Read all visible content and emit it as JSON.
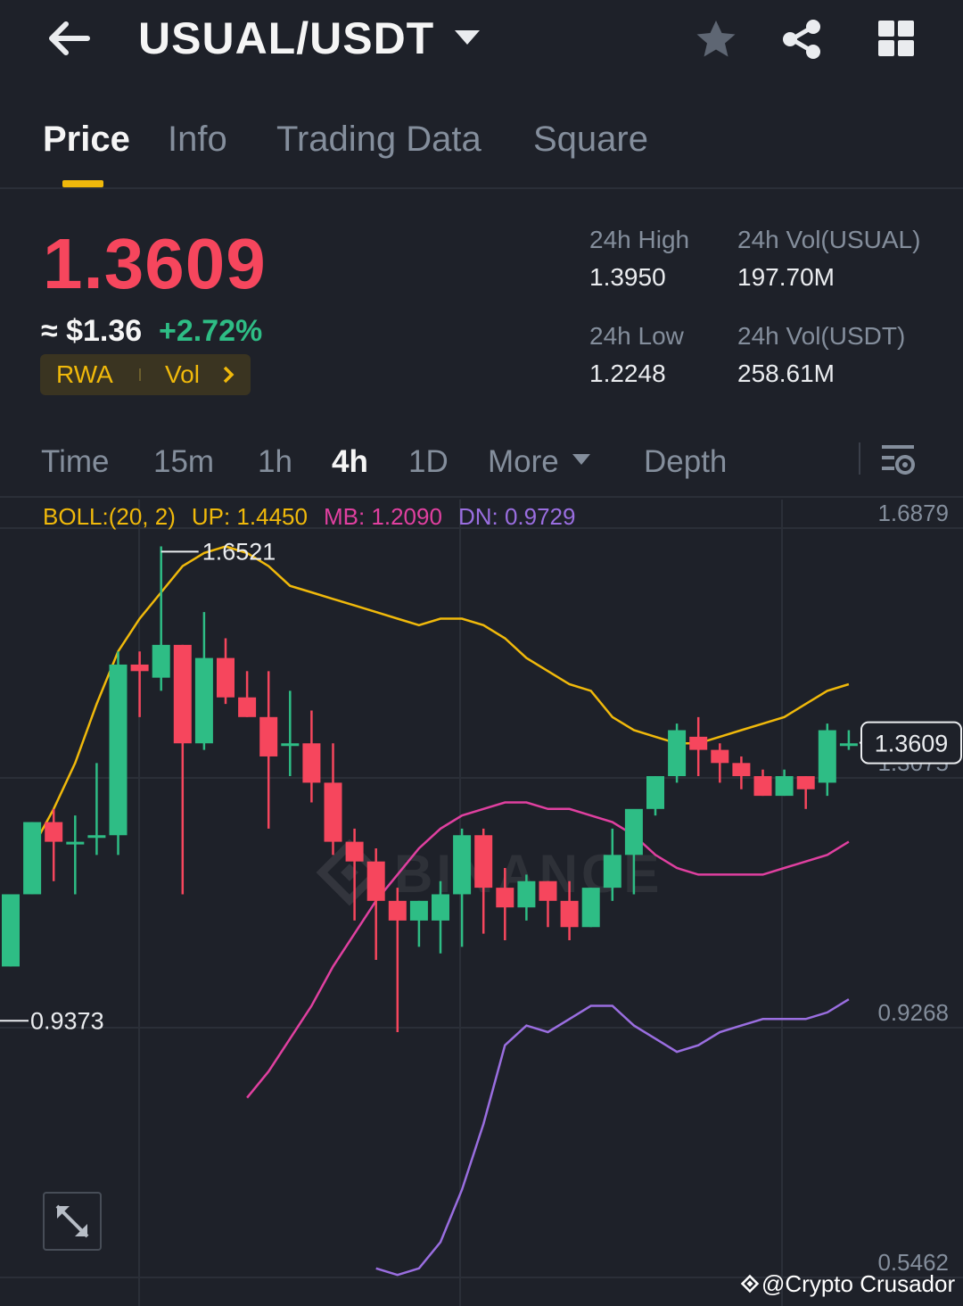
{
  "header": {
    "pair": "USUAL/USDT",
    "icons": [
      "back-arrow-icon",
      "caret-down-icon",
      "star-icon",
      "share-icon",
      "grid-icon"
    ]
  },
  "tabs": [
    {
      "label": "Price",
      "active": true
    },
    {
      "label": "Info"
    },
    {
      "label": "Trading Data"
    },
    {
      "label": "Square"
    }
  ],
  "ticker": {
    "last_price": "1.3609",
    "fiat_price": "≈ $1.36",
    "change": "+2.72%",
    "tags": [
      "RWA",
      "Vol"
    ],
    "price_color": "#f6465d",
    "change_color": "#2ebd85"
  },
  "stats": {
    "high_label": "24h High",
    "high": "1.3950",
    "vol_base_label": "24h Vol(USUAL)",
    "vol_base": "197.70M",
    "low_label": "24h Low",
    "low": "1.2248",
    "vol_quote_label": "24h Vol(USDT)",
    "vol_quote": "258.61M"
  },
  "intervals": {
    "items": [
      "Time",
      "15m",
      "1h",
      "4h",
      "1D",
      "More",
      "Depth"
    ],
    "active": "4h"
  },
  "indicator": {
    "name": "BOLL:(20, 2)",
    "up": "UP: 1.4450",
    "mb": "MB: 1.2090",
    "dn": "DN: 0.9729",
    "colors": {
      "up": "#f0b90b",
      "mb": "#e040a0",
      "dn": "#9a6ee0",
      "name": "#f0b90b"
    }
  },
  "chart_data": {
    "type": "candlestick",
    "y_ticks": [
      "1.6879",
      "1.3075",
      "0.9268",
      "0.5462"
    ],
    "ylim": [
      0.5462,
      1.6879
    ],
    "current_price_label": "1.3609",
    "max_label": "1.6521",
    "min_label": "0.9373",
    "colors": {
      "up": "#2ebd85",
      "down": "#f6465d"
    },
    "candles": [
      {
        "o": 1.02,
        "h": 1.13,
        "l": 1.02,
        "c": 1.13
      },
      {
        "o": 1.13,
        "h": 1.24,
        "l": 1.13,
        "c": 1.24
      },
      {
        "o": 1.24,
        "h": 1.26,
        "l": 1.15,
        "c": 1.21
      },
      {
        "o": 1.21,
        "h": 1.25,
        "l": 1.13,
        "c": 1.21
      },
      {
        "o": 1.22,
        "h": 1.33,
        "l": 1.19,
        "c": 1.22
      },
      {
        "o": 1.22,
        "h": 1.5,
        "l": 1.19,
        "c": 1.48
      },
      {
        "o": 1.48,
        "h": 1.5,
        "l": 1.4,
        "c": 1.47
      },
      {
        "o": 1.46,
        "h": 1.66,
        "l": 1.44,
        "c": 1.51
      },
      {
        "o": 1.51,
        "h": 1.51,
        "l": 1.13,
        "c": 1.36
      },
      {
        "o": 1.36,
        "h": 1.56,
        "l": 1.35,
        "c": 1.49
      },
      {
        "o": 1.49,
        "h": 1.52,
        "l": 1.42,
        "c": 1.43
      },
      {
        "o": 1.43,
        "h": 1.47,
        "l": 1.4,
        "c": 1.4
      },
      {
        "o": 1.4,
        "h": 1.47,
        "l": 1.23,
        "c": 1.34
      },
      {
        "o": 1.36,
        "h": 1.44,
        "l": 1.31,
        "c": 1.36
      },
      {
        "o": 1.36,
        "h": 1.41,
        "l": 1.27,
        "c": 1.3
      },
      {
        "o": 1.3,
        "h": 1.36,
        "l": 1.19,
        "c": 1.21
      },
      {
        "o": 1.21,
        "h": 1.23,
        "l": 1.09,
        "c": 1.18
      },
      {
        "o": 1.18,
        "h": 1.2,
        "l": 1.03,
        "c": 1.12
      },
      {
        "o": 1.12,
        "h": 1.14,
        "l": 0.92,
        "c": 1.09
      },
      {
        "o": 1.09,
        "h": 1.12,
        "l": 1.05,
        "c": 1.12
      },
      {
        "o": 1.09,
        "h": 1.15,
        "l": 1.04,
        "c": 1.13
      },
      {
        "o": 1.13,
        "h": 1.23,
        "l": 1.05,
        "c": 1.22
      },
      {
        "o": 1.22,
        "h": 1.23,
        "l": 1.07,
        "c": 1.14
      },
      {
        "o": 1.14,
        "h": 1.17,
        "l": 1.06,
        "c": 1.11
      },
      {
        "o": 1.11,
        "h": 1.16,
        "l": 1.09,
        "c": 1.15
      },
      {
        "o": 1.15,
        "h": 1.15,
        "l": 1.08,
        "c": 1.12
      },
      {
        "o": 1.12,
        "h": 1.15,
        "l": 1.06,
        "c": 1.08
      },
      {
        "o": 1.08,
        "h": 1.14,
        "l": 1.08,
        "c": 1.14
      },
      {
        "o": 1.14,
        "h": 1.23,
        "l": 1.12,
        "c": 1.19
      },
      {
        "o": 1.19,
        "h": 1.25,
        "l": 1.13,
        "c": 1.26
      },
      {
        "o": 1.26,
        "h": 1.31,
        "l": 1.25,
        "c": 1.31
      },
      {
        "o": 1.31,
        "h": 1.39,
        "l": 1.3,
        "c": 1.38
      },
      {
        "o": 1.37,
        "h": 1.4,
        "l": 1.31,
        "c": 1.35
      },
      {
        "o": 1.35,
        "h": 1.36,
        "l": 1.3,
        "c": 1.33
      },
      {
        "o": 1.33,
        "h": 1.34,
        "l": 1.29,
        "c": 1.31
      },
      {
        "o": 1.31,
        "h": 1.32,
        "l": 1.28,
        "c": 1.28
      },
      {
        "o": 1.28,
        "h": 1.32,
        "l": 1.28,
        "c": 1.31
      },
      {
        "o": 1.31,
        "h": 1.31,
        "l": 1.26,
        "c": 1.29
      },
      {
        "o": 1.3,
        "h": 1.39,
        "l": 1.28,
        "c": 1.38
      },
      {
        "o": 1.36,
        "h": 1.38,
        "l": 1.35,
        "c": 1.36
      }
    ],
    "boll_up": [
      1.2,
      1.26,
      1.33,
      1.42,
      1.5,
      1.55,
      1.59,
      1.63,
      1.65,
      1.66,
      1.65,
      1.63,
      1.6,
      1.59,
      1.58,
      1.57,
      1.56,
      1.55,
      1.54,
      1.55,
      1.55,
      1.54,
      1.52,
      1.49,
      1.47,
      1.45,
      1.44,
      1.4,
      1.38,
      1.37,
      1.36,
      1.36,
      1.37,
      1.38,
      1.39,
      1.4,
      1.42,
      1.44,
      1.45
    ],
    "boll_mb": [
      0.82,
      0.86,
      0.91,
      0.96,
      1.02,
      1.07,
      1.12,
      1.16,
      1.2,
      1.23,
      1.25,
      1.26,
      1.27,
      1.27,
      1.26,
      1.26,
      1.25,
      1.24,
      1.22,
      1.19,
      1.17,
      1.16,
      1.16,
      1.16,
      1.16,
      1.17,
      1.18,
      1.19,
      1.21
    ],
    "boll_dn": [
      0.56,
      0.55,
      0.56,
      0.6,
      0.68,
      0.78,
      0.9,
      0.93,
      0.92,
      0.94,
      0.96,
      0.96,
      0.93,
      0.91,
      0.89,
      0.9,
      0.92,
      0.93,
      0.94,
      0.94,
      0.94,
      0.95,
      0.97
    ]
  },
  "watermark": "@Crypto Crusador"
}
